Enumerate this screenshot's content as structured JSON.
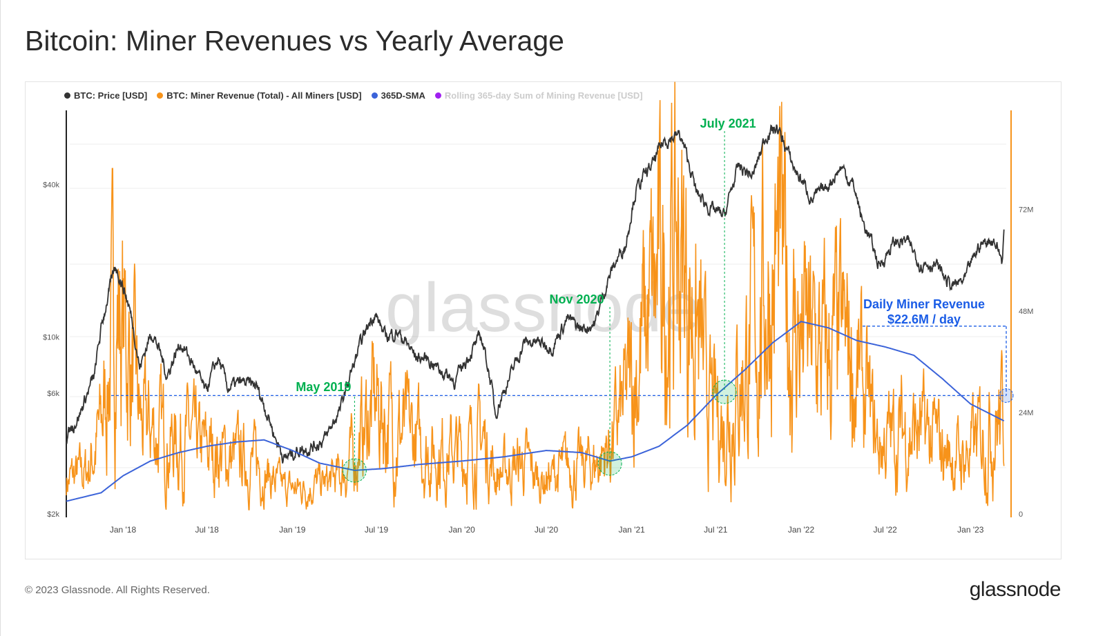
{
  "title": "Bitcoin: Miner Revenues vs Yearly Average",
  "footer": "© 2023 Glassnode. All Rights Reserved.",
  "brand": "glassnode",
  "watermark": "glassnode",
  "legend": [
    {
      "label": "BTC: Price [USD]",
      "color": "#333333",
      "active": true
    },
    {
      "label": "BTC: Miner Revenue (Total) - All Miners [USD]",
      "color": "#f7931a",
      "active": true
    },
    {
      "label": "365D-SMA",
      "color": "#3b63d9",
      "active": true
    },
    {
      "label": "Rolling 365-day Sum of Mining Revenue [USD]",
      "color": "#a020f0",
      "active": false
    }
  ],
  "chart_data": {
    "type": "line",
    "title": "Bitcoin: Miner Revenues vs Yearly Average",
    "grid": true,
    "legend_position": "top-left",
    "x_ticks": [
      "Jan '18",
      "Jul '18",
      "Jan '19",
      "Jul '19",
      "Jan '20",
      "Jul '20",
      "Jan '21",
      "Jul '21",
      "Jan '22",
      "Jul '22",
      "Jan '23"
    ],
    "x_tick_dates": [
      "2018-01-01",
      "2018-07-01",
      "2019-01-01",
      "2019-07-01",
      "2020-01-01",
      "2020-07-01",
      "2021-01-01",
      "2021-07-01",
      "2022-01-01",
      "2022-07-01",
      "2023-01-01"
    ],
    "xlim": [
      "2017-09-01",
      "2023-03-14"
    ],
    "left_axis": {
      "scale": "log",
      "ticks": [
        "$2k",
        "$6k",
        "$10k",
        "$40k"
      ],
      "tick_values": [
        2000,
        6000,
        10000,
        40000
      ]
    },
    "right_axis": {
      "scale": "linear",
      "ticks": [
        "0",
        "24M",
        "48M",
        "72M"
      ],
      "tick_values": [
        0,
        24,
        48,
        72
      ],
      "units": "USD millions"
    },
    "series": [
      {
        "name": "BTC: Price [USD]",
        "axis": "left",
        "color": "#333333",
        "x": [
          "2017-09-01",
          "2017-10-01",
          "2017-11-01",
          "2017-12-17",
          "2018-01-15",
          "2018-02-06",
          "2018-03-05",
          "2018-04-06",
          "2018-05-05",
          "2018-06-28",
          "2018-07-25",
          "2018-08-14",
          "2018-09-15",
          "2018-10-15",
          "2018-11-25",
          "2018-12-15",
          "2019-01-15",
          "2019-02-15",
          "2019-03-15",
          "2019-04-15",
          "2019-05-15",
          "2019-06-26",
          "2019-07-20",
          "2019-08-15",
          "2019-09-25",
          "2019-10-20",
          "2019-11-20",
          "2019-12-18",
          "2020-01-20",
          "2020-02-12",
          "2020-03-13",
          "2020-04-15",
          "2020-05-15",
          "2020-06-15",
          "2020-07-15",
          "2020-08-15",
          "2020-09-15",
          "2020-10-15",
          "2020-11-20",
          "2020-12-20",
          "2021-01-10",
          "2021-02-15",
          "2021-03-13",
          "2021-04-14",
          "2021-05-20",
          "2021-06-20",
          "2021-07-20",
          "2021-08-20",
          "2021-09-20",
          "2021-10-20",
          "2021-11-10",
          "2021-12-15",
          "2022-01-24",
          "2022-02-20",
          "2022-03-29",
          "2022-04-25",
          "2022-05-12",
          "2022-06-18",
          "2022-07-20",
          "2022-08-15",
          "2022-09-15",
          "2022-10-15",
          "2022-11-21",
          "2022-12-20",
          "2023-01-20",
          "2023-02-20",
          "2023-03-10",
          "2023-03-14"
        ],
        "values": [
          4000,
          5000,
          7000,
          19000,
          13000,
          7500,
          10500,
          7000,
          9500,
          6000,
          8200,
          6300,
          6600,
          6400,
          4000,
          3300,
          3600,
          3700,
          4000,
          5200,
          7900,
          12500,
          10000,
          10500,
          8300,
          8200,
          7300,
          6700,
          8700,
          10000,
          5000,
          7000,
          9500,
          9500,
          9200,
          11800,
          10700,
          11400,
          18500,
          23500,
          38000,
          48000,
          60000,
          63000,
          37000,
          32000,
          30000,
          47000,
          43000,
          64000,
          67000,
          47000,
          35000,
          38000,
          47000,
          39000,
          29000,
          19000,
          23500,
          24000,
          19500,
          19500,
          15800,
          16700,
          23000,
          24500,
          20000,
          26000
        ]
      },
      {
        "name": "BTC: Miner Revenue (Total) - All Miners [USD]",
        "axis": "right",
        "color": "#f7931a",
        "x": [
          "2017-09-01",
          "2017-10-15",
          "2017-11-15",
          "2017-12-17",
          "2018-01-15",
          "2018-02-10",
          "2018-03-10",
          "2018-04-15",
          "2018-05-15",
          "2018-06-15",
          "2018-07-15",
          "2018-08-15",
          "2018-09-15",
          "2018-10-15",
          "2018-11-20",
          "2018-12-15",
          "2019-01-15",
          "2019-02-15",
          "2019-03-15",
          "2019-04-15",
          "2019-05-15",
          "2019-06-26",
          "2019-07-20",
          "2019-08-15",
          "2019-09-15",
          "2019-10-15",
          "2019-11-15",
          "2019-12-15",
          "2020-01-15",
          "2020-02-15",
          "2020-03-15",
          "2020-04-15",
          "2020-05-15",
          "2020-06-15",
          "2020-07-15",
          "2020-08-15",
          "2020-09-15",
          "2020-10-15",
          "2020-11-15",
          "2020-12-15",
          "2021-01-15",
          "2021-02-15",
          "2021-03-15",
          "2021-04-15",
          "2021-05-15",
          "2021-06-15",
          "2021-07-15",
          "2021-08-15",
          "2021-09-15",
          "2021-10-20",
          "2021-11-15",
          "2021-12-15",
          "2022-01-15",
          "2022-02-15",
          "2022-03-15",
          "2022-04-15",
          "2022-05-15",
          "2022-06-15",
          "2022-07-15",
          "2022-08-15",
          "2022-09-15",
          "2022-10-15",
          "2022-11-15",
          "2022-12-15",
          "2023-01-15",
          "2023-02-15",
          "2023-03-14"
        ],
        "values": [
          8,
          10,
          20,
          50,
          38,
          20,
          20,
          17,
          18,
          15,
          15,
          13,
          13,
          12,
          8,
          6,
          6,
          7,
          7,
          9,
          14,
          26,
          23,
          20,
          18,
          15,
          15,
          14,
          15,
          18,
          9,
          11,
          12,
          8,
          9,
          11,
          11,
          12,
          16,
          24,
          38,
          48,
          58,
          62,
          48,
          25,
          22,
          30,
          40,
          55,
          58,
          44,
          40,
          36,
          38,
          38,
          28,
          16,
          18,
          20,
          19,
          17,
          14,
          13,
          17,
          22,
          23
        ]
      },
      {
        "name": "365D-SMA",
        "axis": "right",
        "color": "#3b63d9",
        "x": [
          "2017-09-01",
          "2017-11-15",
          "2018-01-01",
          "2018-03-01",
          "2018-05-01",
          "2018-07-01",
          "2018-09-01",
          "2018-11-01",
          "2019-01-01",
          "2019-03-01",
          "2019-05-15",
          "2019-07-15",
          "2019-10-01",
          "2020-01-01",
          "2020-04-01",
          "2020-07-01",
          "2020-09-15",
          "2020-11-15",
          "2021-01-01",
          "2021-03-01",
          "2021-05-01",
          "2021-07-01",
          "2021-09-01",
          "2021-11-01",
          "2022-01-01",
          "2022-03-01",
          "2022-05-01",
          "2022-07-01",
          "2022-09-01",
          "2022-11-01",
          "2023-01-01",
          "2023-03-14"
        ],
        "values": [
          3,
          5,
          9,
          12.5,
          14.5,
          16,
          17,
          17.5,
          15,
          12,
          10.3,
          10.7,
          11.7,
          12.5,
          13.5,
          15,
          14.5,
          12.5,
          13.5,
          16,
          21,
          28,
          34,
          40.5,
          45.5,
          44,
          41,
          39.5,
          37.5,
          32,
          26,
          22
        ]
      }
    ],
    "annotations": [
      {
        "label": "May 2019",
        "date": "2019-05-15",
        "color": "#00b050"
      },
      {
        "label": "Nov 2020",
        "date": "2020-11-15",
        "color": "#00b050"
      },
      {
        "label": "July 2021",
        "date": "2021-07-20",
        "color": "#00b050"
      },
      {
        "label": "Daily Miner Revenue",
        "sublabel": "$22.6M / day",
        "date": "2023-03-14",
        "color": "#1a5ce6"
      }
    ],
    "reference_line_value_M": 28,
    "sma_peak_line_value_M": 44.4
  }
}
